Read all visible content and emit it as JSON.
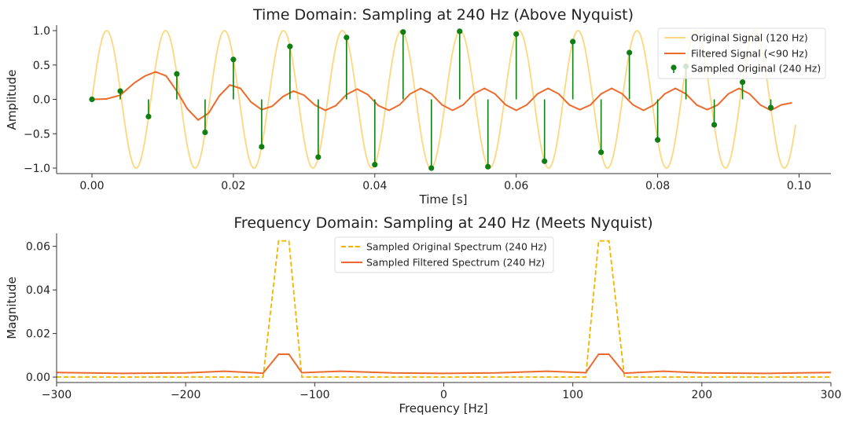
{
  "chart_data": [
    {
      "type": "line",
      "title": "Time Domain: Sampling at 240 Hz (Above Nyquist)",
      "xlabel": "Time [s]",
      "ylabel": "Amplitude",
      "xlim": [
        -0.005,
        0.1045
      ],
      "ylim": [
        -1.08,
        1.08
      ],
      "xticks": [
        0.0,
        0.02,
        0.04,
        0.06,
        0.08,
        0.1
      ],
      "xtick_labels": [
        "0.00",
        "0.02",
        "0.04",
        "0.06",
        "0.08",
        "0.10"
      ],
      "yticks": [
        1.0,
        0.5,
        0.0,
        -0.5,
        -1.0
      ],
      "ytick_labels": [
        "1.0",
        "0.5",
        "0.0",
        "−0.5",
        "−1.0"
      ],
      "grid": false,
      "legend_position": "top-right",
      "colors": {
        "original": "#fbd87f",
        "filtered": "#ee6a2c",
        "sampled": "#0f7f12"
      },
      "series": [
        {
          "name": "Original Signal (120 Hz)",
          "kind": "line",
          "function": "sin(2*pi*120*t)",
          "x_range": [
            0.0,
            0.0995
          ]
        },
        {
          "name": "Filtered Signal (<90 Hz)",
          "kind": "line",
          "x": [
            0.0,
            0.002,
            0.004,
            0.006,
            0.0075,
            0.009,
            0.0105,
            0.012,
            0.0135,
            0.015,
            0.0165,
            0.018,
            0.0195,
            0.021,
            0.0225,
            0.024,
            0.0255,
            0.027,
            0.0285,
            0.03,
            0.0315,
            0.033,
            0.0345,
            0.036,
            0.0375,
            0.039,
            0.0405,
            0.042,
            0.0435,
            0.045,
            0.0465,
            0.048,
            0.0495,
            0.051,
            0.0525,
            0.054,
            0.0555,
            0.057,
            0.0585,
            0.06,
            0.0615,
            0.063,
            0.0645,
            0.066,
            0.0675,
            0.069,
            0.0705,
            0.072,
            0.0735,
            0.075,
            0.0765,
            0.078,
            0.0795,
            0.081,
            0.0825,
            0.084,
            0.0855,
            0.087,
            0.0885,
            0.09,
            0.0915,
            0.093,
            0.0945,
            0.096,
            0.0975,
            0.099
          ],
          "y": [
            0.0,
            0.005,
            0.06,
            0.24,
            0.34,
            0.4,
            0.34,
            0.12,
            -0.14,
            -0.3,
            -0.2,
            0.05,
            0.21,
            0.16,
            -0.04,
            -0.15,
            -0.1,
            0.04,
            0.12,
            0.06,
            -0.08,
            -0.16,
            -0.09,
            0.07,
            0.15,
            0.07,
            -0.09,
            -0.16,
            -0.08,
            0.08,
            0.16,
            0.08,
            -0.08,
            -0.16,
            -0.08,
            0.08,
            0.16,
            0.08,
            -0.08,
            -0.16,
            -0.08,
            0.08,
            0.16,
            0.08,
            -0.08,
            -0.15,
            -0.08,
            0.08,
            0.16,
            0.08,
            -0.08,
            -0.16,
            -0.08,
            0.08,
            0.16,
            0.08,
            -0.08,
            -0.15,
            -0.08,
            0.08,
            0.16,
            0.08,
            -0.08,
            -0.16,
            -0.08,
            -0.05
          ]
        },
        {
          "name": "Sampled Original (240 Hz)",
          "kind": "stem",
          "x": [
            0.0,
            0.004,
            0.008,
            0.012,
            0.016,
            0.02,
            0.024,
            0.028,
            0.032,
            0.036,
            0.04,
            0.044,
            0.048,
            0.052,
            0.056,
            0.06,
            0.064,
            0.068,
            0.072,
            0.076,
            0.08,
            0.084,
            0.088,
            0.092,
            0.096
          ],
          "y": [
            0.0,
            0.12,
            -0.25,
            0.37,
            -0.48,
            0.58,
            -0.69,
            0.77,
            -0.84,
            0.9,
            -0.95,
            0.98,
            -1.0,
            0.99,
            -0.98,
            0.95,
            -0.9,
            0.84,
            -0.77,
            0.68,
            -0.59,
            0.48,
            -0.37,
            0.25,
            -0.12
          ]
        }
      ]
    },
    {
      "type": "line",
      "title": "Frequency Domain: Sampling at 240 Hz (Meets Nyquist)",
      "xlabel": "Frequency [Hz]",
      "ylabel": "Magnitude",
      "xlim": [
        -300,
        300
      ],
      "ylim": [
        -0.0025,
        0.066
      ],
      "xticks": [
        -300,
        -200,
        -100,
        0,
        100,
        200,
        300
      ],
      "xtick_labels": [
        "−300",
        "−200",
        "−100",
        "0",
        "100",
        "200",
        "300"
      ],
      "yticks": [
        0.0,
        0.02,
        0.04,
        0.06
      ],
      "ytick_labels": [
        "0.00",
        "0.02",
        "0.04",
        "0.06"
      ],
      "grid": false,
      "legend_position": "top-center",
      "colors": {
        "original": "#f5b400",
        "filtered": "#ee6a2c"
      },
      "series": [
        {
          "name": "Sampled Original Spectrum (240 Hz)",
          "kind": "dashed-line",
          "x": [
            -300,
            -140,
            -128,
            -120,
            -110,
            110,
            120,
            128,
            140,
            300
          ],
          "y": [
            0.0,
            0.0,
            0.0625,
            0.0625,
            0.0,
            0.0,
            0.0625,
            0.0625,
            0.0,
            0.0
          ]
        },
        {
          "name": "Sampled Filtered Spectrum (240 Hz)",
          "kind": "line",
          "x": [
            -300,
            -250,
            -200,
            -170,
            -140,
            -128,
            -120,
            -110,
            -80,
            -40,
            0,
            40,
            80,
            110,
            120,
            128,
            140,
            170,
            200,
            250,
            300
          ],
          "y": [
            0.0021,
            0.0017,
            0.0019,
            0.0027,
            0.0018,
            0.0105,
            0.0105,
            0.002,
            0.0027,
            0.0019,
            0.0017,
            0.0019,
            0.0027,
            0.002,
            0.0105,
            0.0105,
            0.0018,
            0.0027,
            0.0019,
            0.0017,
            0.0021
          ]
        }
      ]
    }
  ]
}
